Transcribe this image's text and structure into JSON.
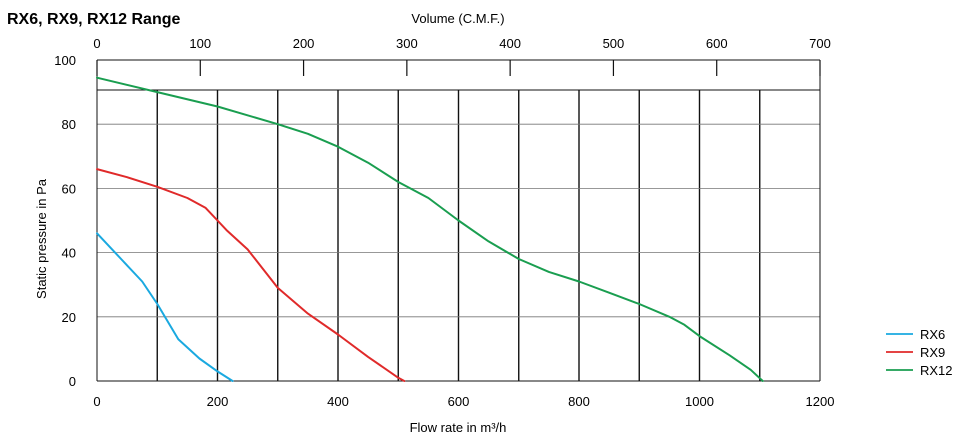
{
  "chart_data": {
    "type": "line",
    "title": "RX6, RX9, RX12 Range",
    "xlabel": "Flow rate in m³/h",
    "ylabel": "Static pressure in Pa",
    "top_axis_label": "Volume (C.M.F.)",
    "xlim": [
      0,
      1200
    ],
    "ylim": [
      0,
      100
    ],
    "top_xlim": [
      0,
      700
    ],
    "x_ticks": [
      0,
      200,
      400,
      600,
      800,
      1000,
      1200
    ],
    "y_ticks": [
      0,
      20,
      40,
      60,
      80,
      100
    ],
    "top_ticks": [
      0,
      100,
      200,
      300,
      400,
      500,
      600,
      700
    ],
    "grid": true,
    "legend_position": "bottom-right",
    "series": [
      {
        "name": "RX6",
        "color": "#1aa9e0",
        "x": [
          0,
          40,
          75,
          100,
          135,
          170,
          200,
          225
        ],
        "y": [
          46,
          38,
          31,
          24,
          13,
          7,
          3,
          0
        ]
      },
      {
        "name": "RX9",
        "color": "#e02a2a",
        "x": [
          0,
          50,
          100,
          150,
          180,
          200,
          215,
          250,
          275,
          300,
          350,
          400,
          450,
          500,
          510
        ],
        "y": [
          66,
          63.5,
          60.5,
          57,
          54,
          50,
          47,
          41,
          35,
          29,
          21,
          14.5,
          7.5,
          1,
          0
        ]
      },
      {
        "name": "RX12",
        "color": "#1a9e50",
        "x": [
          0,
          100,
          200,
          300,
          350,
          400,
          450,
          500,
          550,
          600,
          650,
          700,
          750,
          800,
          850,
          900,
          950,
          975,
          1000,
          1050,
          1085,
          1105
        ],
        "y": [
          94.5,
          90,
          85.5,
          80,
          77,
          73,
          68,
          62,
          57,
          50,
          43.5,
          38,
          34,
          31,
          27.5,
          24,
          20,
          17.5,
          14,
          8,
          3.5,
          0
        ]
      }
    ]
  }
}
